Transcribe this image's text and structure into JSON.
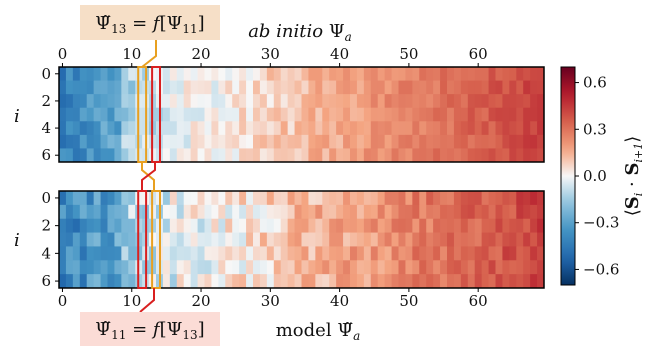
{
  "chart_data": {
    "type": "heatmap",
    "panels": [
      {
        "name": "top",
        "xlabel": "ab initio Ψ_a",
        "xlabel_main": "ab initio",
        "xlabel_sym": "Ψ",
        "xlabel_sub": "a",
        "ylabel": "i",
        "x_ticks": [
          0,
          10,
          20,
          30,
          40,
          50,
          60
        ],
        "y_ticks": [
          0,
          2,
          4,
          6
        ],
        "x_tick_position": "top",
        "annotation": "Ψ̃13 = f[Ψ11]",
        "annotation_color": "#f6dfc7",
        "highlight_boxes": [
          {
            "x_start": 11,
            "x_end": 12,
            "color": "#e8a020"
          },
          {
            "x_start": 13,
            "x_end": 14,
            "color": "#d92020"
          }
        ]
      },
      {
        "name": "bottom",
        "xlabel": "model Ψ̃_a",
        "xlabel_main": "model",
        "xlabel_sym": "Ψ̃",
        "xlabel_sub": "a",
        "ylabel": "i",
        "x_ticks": [
          0,
          10,
          20,
          30,
          40,
          50,
          60
        ],
        "y_ticks": [
          0,
          2,
          4,
          6
        ],
        "x_tick_position": "bottom",
        "annotation": "Ψ̃11 = f[Ψ13]",
        "annotation_color": "#fbdcd6",
        "highlight_boxes": [
          {
            "x_start": 11,
            "x_end": 12,
            "color": "#d92020"
          },
          {
            "x_start": 13,
            "x_end": 14,
            "color": "#e8a020"
          }
        ]
      }
    ],
    "n_cols": 70,
    "n_rows": 7,
    "colorbar": {
      "label": "⟨S_i · S_i+1⟩",
      "ticks": [
        -0.6,
        -0.3,
        0.0,
        0.3,
        0.6
      ],
      "tick_labels": [
        "−0.6",
        "−0.3",
        "0.0",
        "0.3",
        "0.6"
      ],
      "range": [
        -0.7,
        0.7
      ],
      "colormap": "RdBu_r"
    }
  }
}
